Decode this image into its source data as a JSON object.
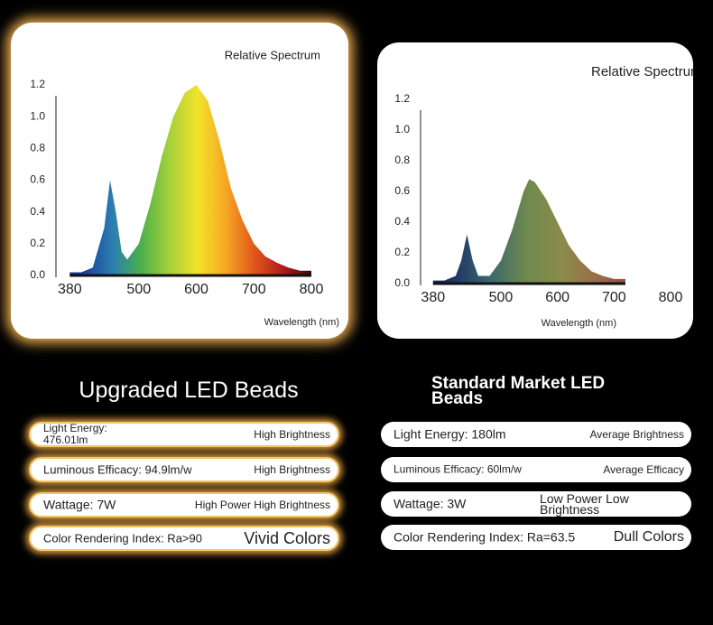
{
  "chart_data": [
    {
      "type": "area",
      "title": "Relative Spectrum",
      "x_label": "Wavelength (nm)",
      "x": [
        380,
        400,
        420,
        440,
        450,
        460,
        470,
        480,
        500,
        520,
        540,
        560,
        580,
        600,
        620,
        640,
        660,
        680,
        700,
        720,
        740,
        760,
        780,
        800
      ],
      "values": [
        0.02,
        0.02,
        0.05,
        0.3,
        0.6,
        0.4,
        0.15,
        0.1,
        0.2,
        0.45,
        0.75,
        1.0,
        1.15,
        1.2,
        1.1,
        0.85,
        0.55,
        0.35,
        0.2,
        0.12,
        0.08,
        0.05,
        0.03,
        0.03
      ],
      "xlim": [
        356,
        800
      ],
      "xticks": [
        380,
        500,
        600,
        700,
        800
      ],
      "ylim": [
        0,
        1.2
      ],
      "yticks": [
        {
          "value": 0,
          "label": "0.0"
        },
        0.2,
        0.4,
        0.6,
        0.8,
        {
          "value": 1,
          "label": "1.0"
        },
        1.2
      ],
      "gradient": [
        "#1b1f5c",
        "#1d3f9a",
        "#2a7fb0",
        "#4cb04a",
        "#a5d13a",
        "#f2e22a",
        "#f5a623",
        "#e2541c",
        "#b01c1c",
        "#3a0a0a"
      ]
    },
    {
      "type": "area",
      "title": "Relative Spectrum",
      "x_label": "Wavelength (nm)",
      "x": [
        380,
        400,
        420,
        430,
        440,
        450,
        460,
        480,
        500,
        520,
        540,
        550,
        560,
        580,
        600,
        620,
        640,
        660,
        680,
        700,
        720
      ],
      "values": [
        0.02,
        0.02,
        0.05,
        0.15,
        0.32,
        0.15,
        0.05,
        0.05,
        0.15,
        0.35,
        0.6,
        0.68,
        0.66,
        0.55,
        0.4,
        0.25,
        0.15,
        0.08,
        0.05,
        0.03,
        0.03
      ],
      "xlim": [
        358,
        800
      ],
      "xticks": [
        380,
        500,
        600,
        700,
        800
      ],
      "ylim": [
        0,
        1.2
      ],
      "yticks": [
        {
          "value": 0,
          "label": "0.0"
        },
        0.2,
        0.4,
        0.6,
        0.8,
        {
          "value": 1,
          "label": "1.0"
        },
        1.2
      ],
      "gradient": [
        "#101a40",
        "#1f3866",
        "#3e6a6a",
        "#6f8a4e",
        "#8c8a4a",
        "#9a6a4a",
        "#8a4a3e",
        "#3a1a1a"
      ]
    }
  ],
  "comparison": [
    {
      "heading": "Upgraded LED Beads",
      "rows": [
        {
          "label": "Light Energy: 476.01lm",
          "note": "High Brightness"
        },
        {
          "label": "Luminous Efficacy: 94.9lm/w",
          "note": "High Brightness"
        },
        {
          "label": "Wattage: 7W",
          "note": "High Power High Brightness"
        },
        {
          "label": "Color Rendering Index: Ra>90",
          "note": "Vivid Colors"
        }
      ]
    },
    {
      "heading": "Standard Market LED Beads",
      "rows": [
        {
          "label": "Light Energy: 180lm",
          "note": "Average Brightness"
        },
        {
          "label": "Luminous Efficacy: 60lm/w",
          "note": "Average Efficacy"
        },
        {
          "label": "Wattage: 3W",
          "note": "Low Power Low Brightness"
        },
        {
          "label": "Color Rendering Index: Ra=63.5",
          "note": "Dull Colors"
        }
      ]
    }
  ]
}
